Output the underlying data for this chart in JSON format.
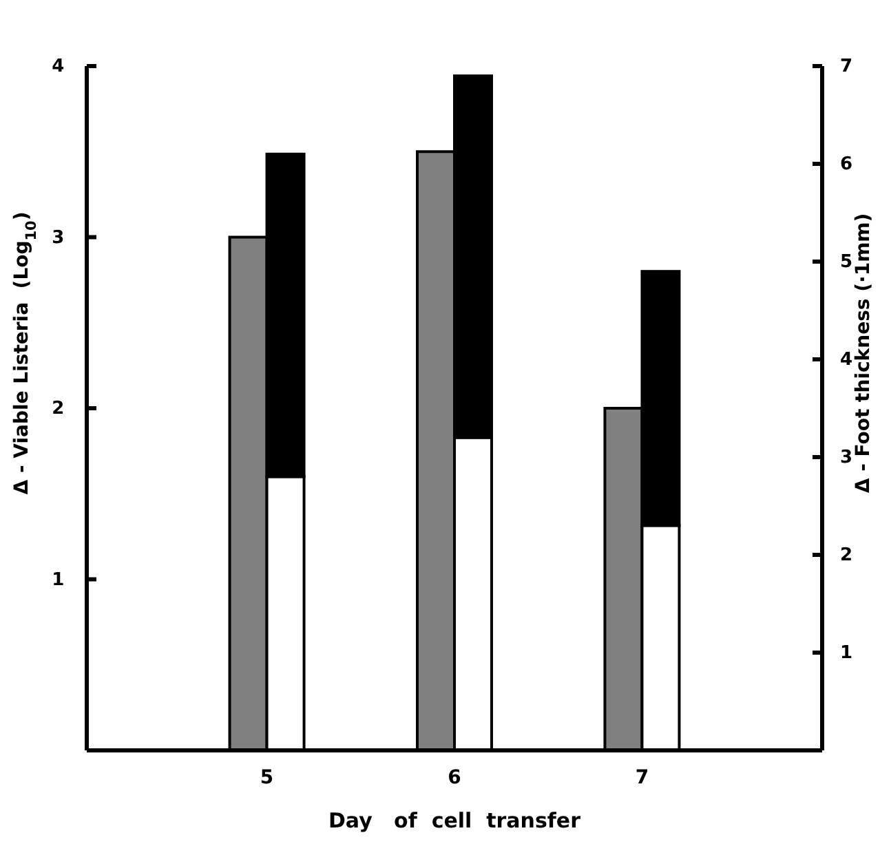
{
  "chart_data": {
    "type": "bar",
    "stacked": true,
    "xlabel": "Day   of  cell  transfer",
    "ylabel": "Δ - Viable Listeria  (Log$_{10}$)",
    "y2label": "Δ - Foot thickness (·1mm)",
    "categories": [
      "5",
      "6",
      "7"
    ],
    "series": [
      {
        "color": "#808080",
        "values": [
          3.0,
          3.5,
          2.0
        ]
      },
      {
        "color": "#ffffff",
        "axis": "y2",
        "values": [
          2.8,
          3.2,
          2.3
        ]
      },
      {
        "color": "#000000",
        "axis": "y2",
        "values": [
          3.3,
          3.7,
          2.6
        ]
      }
    ],
    "ylim": [
      0,
      4
    ],
    "yticks": [
      1,
      2,
      3,
      4
    ],
    "y2lim": [
      0,
      7
    ],
    "y2ticks": [
      1,
      2,
      3,
      4,
      5,
      6,
      7
    ],
    "grid": false
  }
}
